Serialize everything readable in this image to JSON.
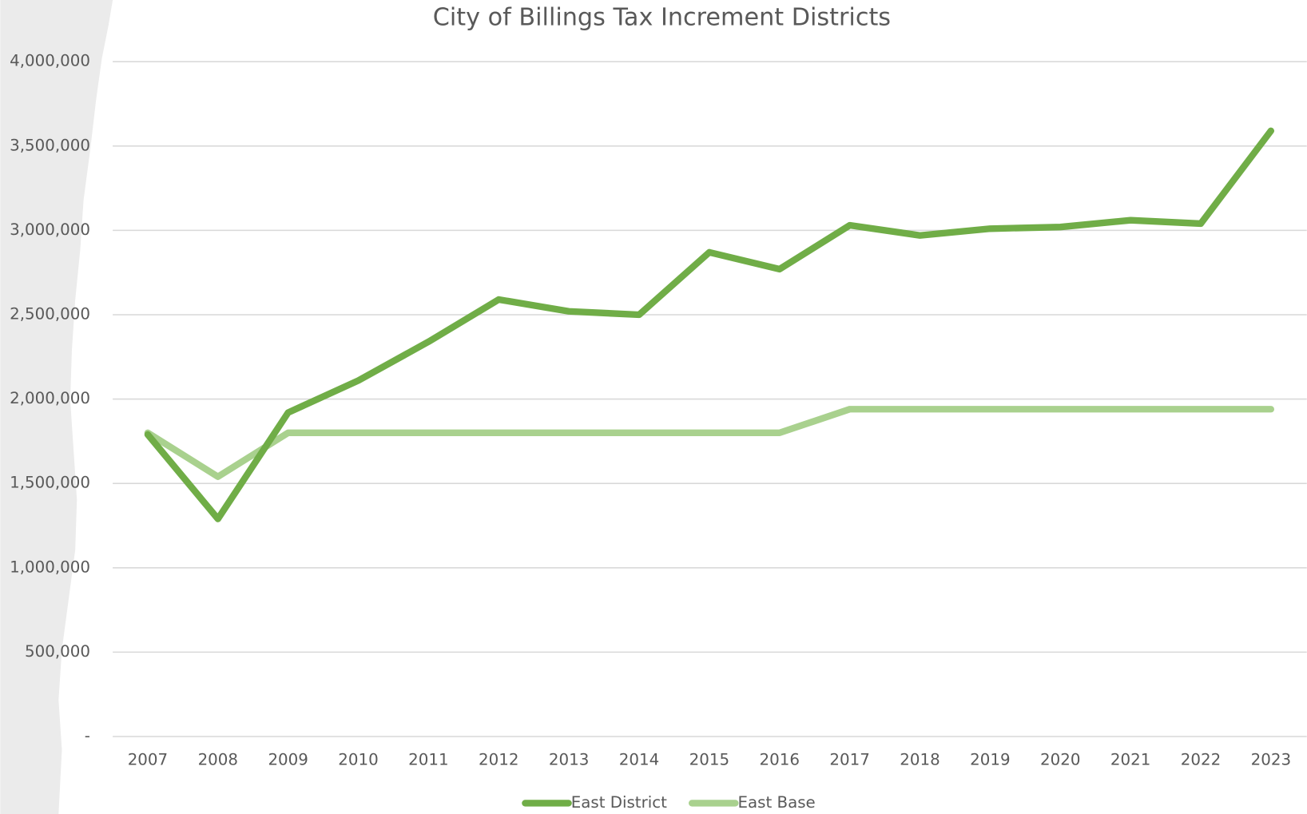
{
  "chart_data": {
    "type": "line",
    "title": "City of Billings Tax Increment Districts",
    "categories": [
      "2007",
      "2008",
      "2009",
      "2010",
      "2011",
      "2012",
      "2013",
      "2014",
      "2015",
      "2016",
      "2017",
      "2018",
      "2019",
      "2020",
      "2021",
      "2022",
      "2023"
    ],
    "series": [
      {
        "name": "East District",
        "color": "#70ad47",
        "values": [
          1790000,
          1290000,
          1920000,
          2110000,
          2340000,
          2590000,
          2520000,
          2500000,
          2870000,
          2770000,
          3030000,
          2970000,
          3010000,
          3020000,
          3060000,
          3040000,
          3590000
        ]
      },
      {
        "name": "East Base",
        "color": "#a9d18e",
        "values": [
          1800000,
          1540000,
          1800000,
          1800000,
          1800000,
          1800000,
          1800000,
          1800000,
          1800000,
          1800000,
          1940000,
          1940000,
          1940000,
          1940000,
          1940000,
          1940000,
          1940000
        ]
      }
    ],
    "ylim": [
      0,
      4000000
    ],
    "yticks": [
      {
        "value": 0,
        "label": "-"
      },
      {
        "value": 500000,
        "label": "500,000"
      },
      {
        "value": 1000000,
        "label": "1,000,000"
      },
      {
        "value": 1500000,
        "label": "1,500,000"
      },
      {
        "value": 2000000,
        "label": "2,000,000"
      },
      {
        "value": 2500000,
        "label": "2,500,000"
      },
      {
        "value": 3000000,
        "label": "3,000,000"
      },
      {
        "value": 3500000,
        "label": "3,500,000"
      },
      {
        "value": 4000000,
        "label": "4,000,000"
      }
    ],
    "grid": true,
    "legend": "bottom"
  }
}
